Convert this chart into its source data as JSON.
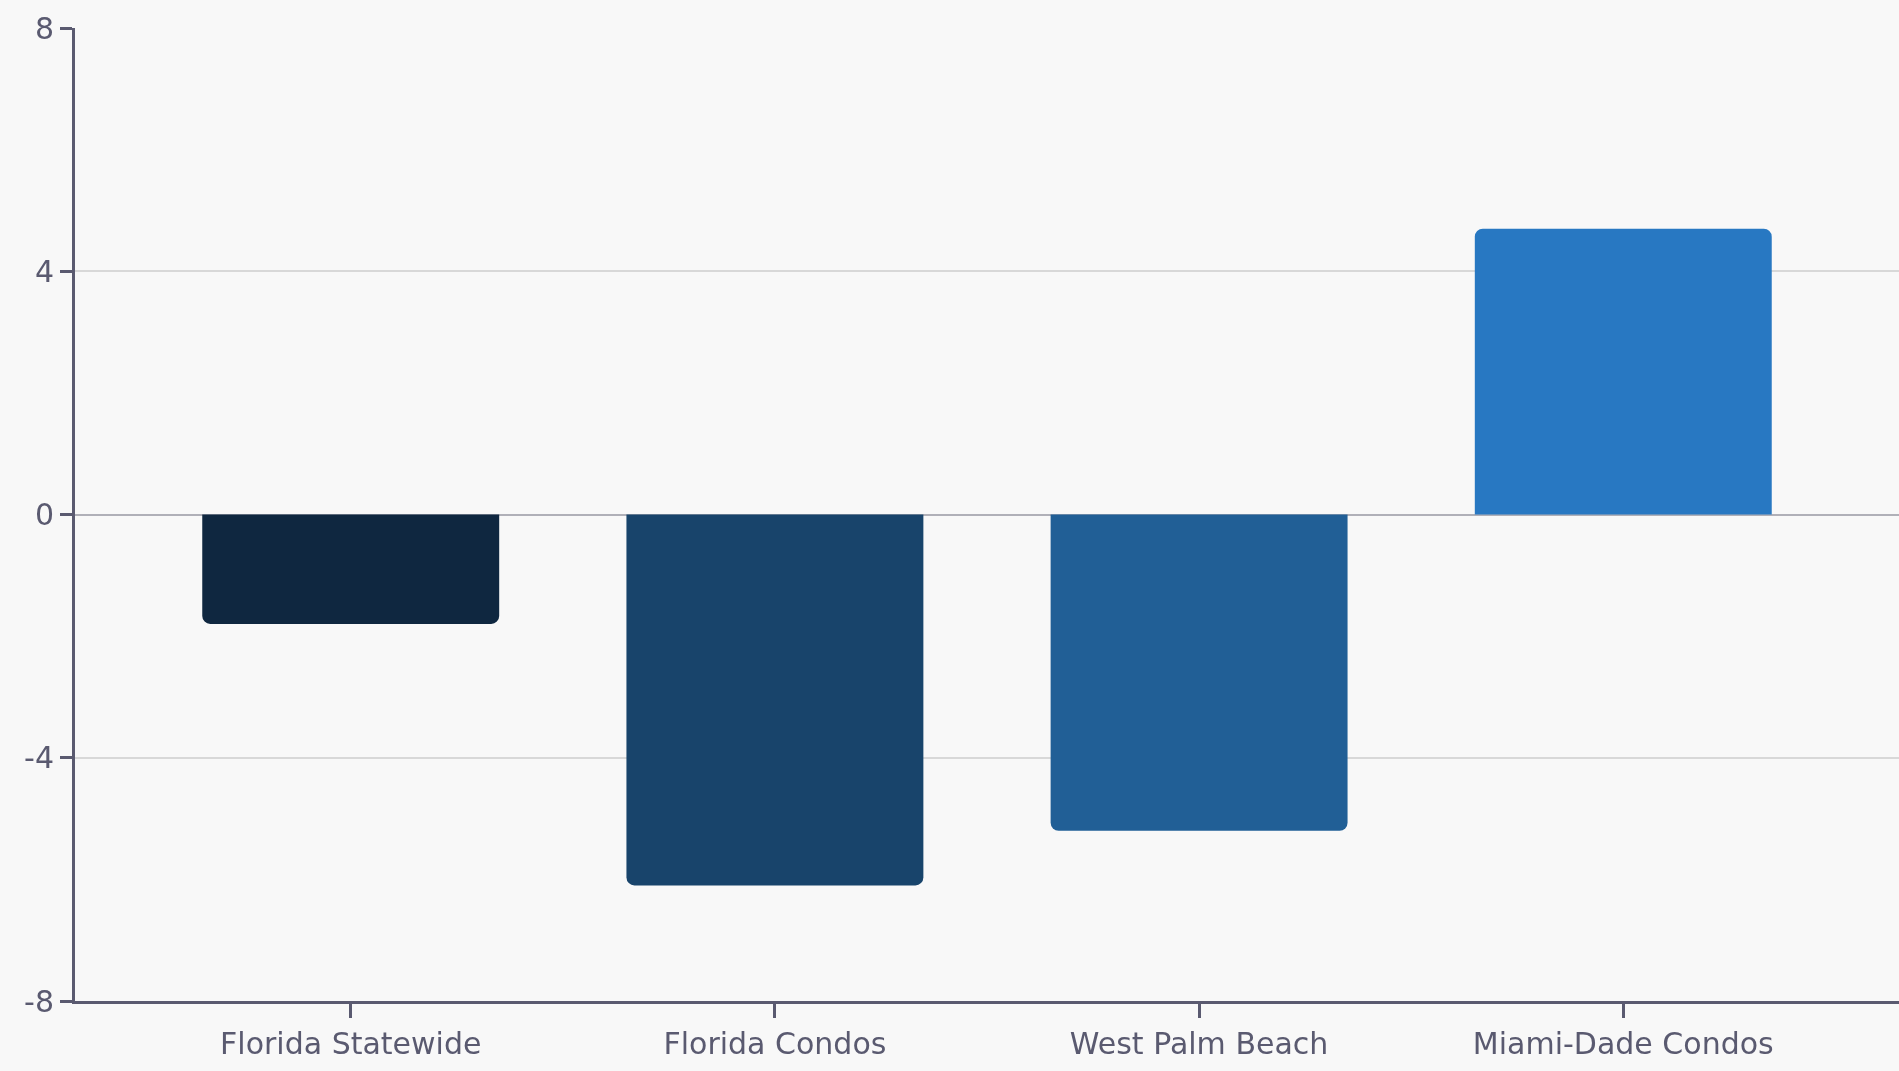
{
  "chart_data": {
    "type": "bar",
    "categories": [
      "Florida Statewide",
      "Florida Condos",
      "West Palm Beach",
      "Miami-Dade Condos"
    ],
    "values": [
      -1.8,
      -6.1,
      -5.2,
      4.7
    ],
    "colors": [
      "#0f2740",
      "#18446b",
      "#215f96",
      "#2878c2"
    ],
    "ylim": [
      -8,
      8
    ],
    "yticks": [
      -8,
      -4,
      0,
      4,
      8
    ],
    "grid": "y"
  }
}
